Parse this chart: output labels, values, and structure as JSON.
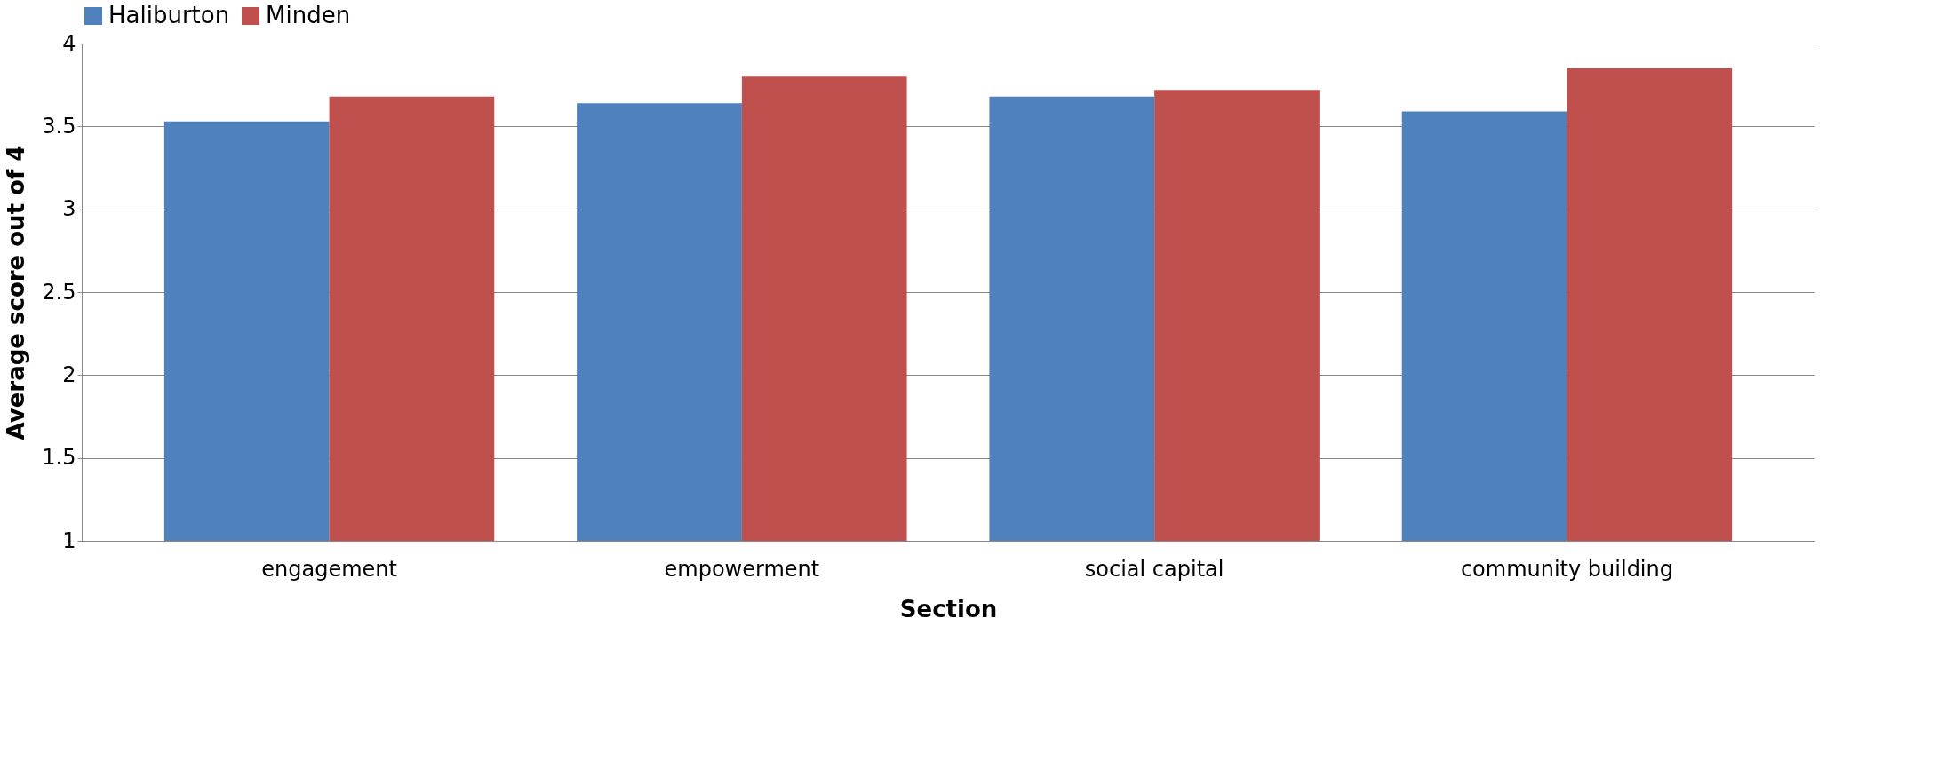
{
  "chart_data": {
    "type": "bar",
    "xlabel": "Section",
    "ylabel": "Average score out of 4",
    "categories": [
      "engagement",
      "empowerment",
      "social capital",
      "community building"
    ],
    "series": [
      {
        "name": "Haliburton",
        "color": "#4f81bd",
        "values": [
          3.53,
          3.64,
          3.68,
          3.59
        ]
      },
      {
        "name": "Minden",
        "color": "#c0504d",
        "values": [
          3.68,
          3.8,
          3.72,
          3.85
        ]
      }
    ],
    "ylim": [
      1,
      4
    ],
    "yticks": [
      1,
      1.5,
      2,
      2.5,
      3,
      3.5,
      4
    ],
    "grid": "y",
    "legend": "top"
  }
}
